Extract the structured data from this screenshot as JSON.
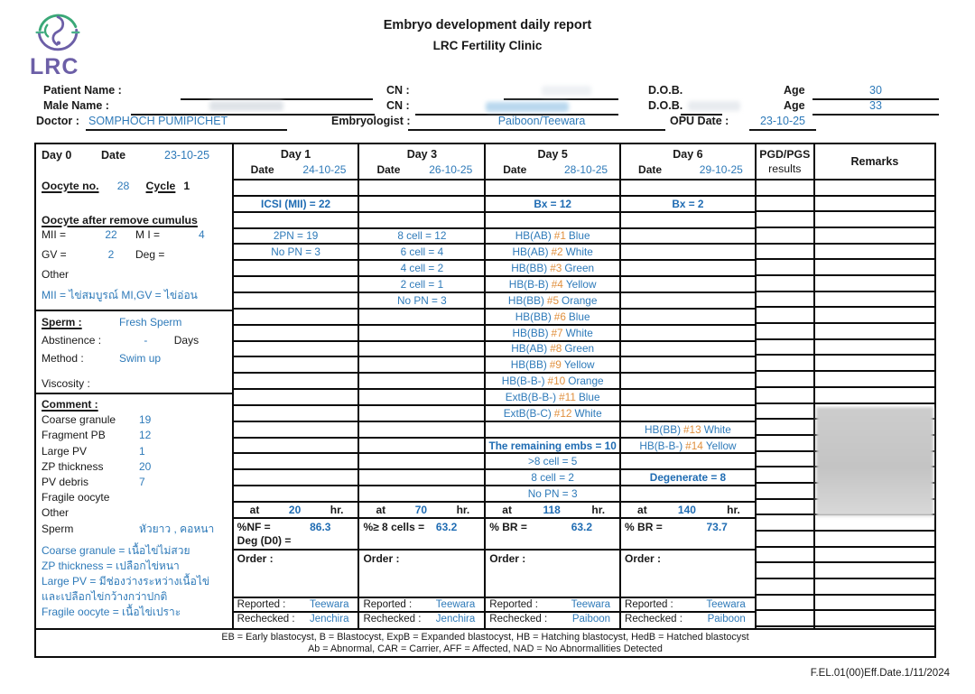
{
  "colors": {
    "accent_blue": "#2e7ab9",
    "accent_blue_bold": "#1f6cb3",
    "accent_orange": "#e0903e",
    "logo_purple": "#6c5fa7",
    "logo_green": "#3aa877"
  },
  "header": {
    "title": "Embryo development daily report",
    "subtitle": "LRC Fertility Clinic",
    "logo_text": "LRC",
    "patient_name_label": "Patient Name :",
    "male_name_label": "Male Name :",
    "doctor_label": "Doctor :",
    "doctor_value": "SOMPHOCH PUMIPICHET",
    "cn_label": "CN :",
    "dob_label": "D.O.B.",
    "age_label": "Age",
    "patient_age": "30",
    "male_age": "33",
    "embryologist_label": "Embryologist :",
    "embryologist_value": "Paiboon/Teewara",
    "opu_label": "OPU Date :",
    "opu_value": "23-10-25"
  },
  "day0": {
    "title": "Day 0",
    "date_label": "Date",
    "date": "23-10-25",
    "oocyte_no_label": "Oocyte no.",
    "oocyte_no": "28",
    "cycle_label": "Cycle",
    "cycle": "1",
    "cumulus_heading": "Oocyte after remove cumulus",
    "mii_label": "MII =",
    "mii": "22",
    "mi_label": "M I =",
    "mi": "4",
    "gv_label": "GV =",
    "gv": "2",
    "deg_label": "Deg =",
    "other_label": "Other",
    "thai_note": "MII = ไข่สมบูรณ์ MI,GV = ไข่อ่อน",
    "sperm_heading": "Sperm :",
    "sperm_type": "Fresh Sperm",
    "abstinence_label": "Abstinence :",
    "abstinence_value": "-",
    "abstinence_unit": "Days",
    "method_label": "Method :",
    "method_value": "Swim up",
    "viscosity_label": "Viscosity :",
    "comment_heading": "Comment :",
    "comments": [
      {
        "label": "Coarse granule",
        "value": "19"
      },
      {
        "label": "Fragment PB",
        "value": "12"
      },
      {
        "label": "Large PV",
        "value": "1"
      },
      {
        "label": "ZP thickness",
        "value": "20"
      },
      {
        "label": "PV debris",
        "value": "7"
      },
      {
        "label": "Fragile oocyte",
        "value": ""
      },
      {
        "label": "Other",
        "value": ""
      },
      {
        "label": "Sperm",
        "value": "หัวยาว , คอหนา"
      }
    ],
    "thai_glossary": [
      "Coarse granule  = เนื้อไข่ไม่สวย",
      "ZP thickness = เปลือกไข่หนา",
      "Large PV = มีช่องว่างระหว่างเนื้อไข่",
      "และเปลือกไข่กว้างกว่าปกติ",
      "Fragile oocyte = เนื้อไข่เปราะ"
    ]
  },
  "grid": {
    "date_label": "Date",
    "pgd_header1": "PGD/PGS",
    "pgd_header2": "results",
    "remarks_header": "Remarks",
    "days": [
      {
        "label": "Day 1",
        "date": "24-10-25",
        "rows": [
          "",
          {
            "t": "ICSI (MII) = 22",
            "b": true
          },
          "",
          {
            "t": "2PN = 19"
          },
          {
            "t": "No PN = 3"
          },
          "",
          "",
          "",
          "",
          "",
          "",
          "",
          "",
          "",
          "",
          "",
          "",
          "",
          "",
          ""
        ],
        "hr_at": "at",
        "hr_value": "20",
        "hr_unit": "hr.",
        "pct_label": "%NF =",
        "pct_value": "86.3",
        "pct_extra": "Deg (D0) =",
        "order_label": "Order :",
        "reported_label": "Reported :",
        "reported": "Teewara",
        "rechecked_label": "Rechecked :",
        "rechecked": "Jenchira"
      },
      {
        "label": "Day 3",
        "date": "26-10-25",
        "rows": [
          "",
          "",
          "",
          {
            "t": "8 cell = 12"
          },
          {
            "t": "6 cell = 4"
          },
          {
            "t": "4 cell = 2"
          },
          {
            "t": "2 cell = 1"
          },
          {
            "t": "No PN = 3"
          },
          "",
          "",
          "",
          "",
          "",
          "",
          "",
          "",
          "",
          "",
          "",
          ""
        ],
        "hr_at": "at",
        "hr_value": "70",
        "hr_unit": "hr.",
        "pct_label": "%≥ 8 cells =",
        "pct_value": "63.2",
        "pct_extra": "",
        "order_label": "Order :",
        "reported_label": "Reported :",
        "reported": "Teewara",
        "rechecked_label": "Rechecked :",
        "rechecked": "Jenchira"
      },
      {
        "label": "Day 5",
        "date": "28-10-25",
        "rows": [
          "",
          {
            "t": "Bx = 12",
            "b": true
          },
          "",
          {
            "t": "HB(AB) #1 Blue"
          },
          {
            "t": "HB(AB) #2 White"
          },
          {
            "t": "HB(BB) #3 Green"
          },
          {
            "t": "HB(B-B) #4 Yellow"
          },
          {
            "t": "HB(BB) #5 Orange"
          },
          {
            "t": "HB(BB) #6 Blue"
          },
          {
            "t": "HB(BB) #7 White"
          },
          {
            "t": "HB(AB) #8 Green"
          },
          {
            "t": "HB(BB) #9 Yellow"
          },
          {
            "t": "HB(B-B-) #10 Orange"
          },
          {
            "t": "ExtB(B-B-) #11 Blue"
          },
          {
            "t": "ExtB(B-C) #12 White"
          },
          "",
          {
            "t": "The remaining embs = 10",
            "b": true
          },
          {
            "t": ">8 cell = 5"
          },
          {
            "t": "8 cell = 2"
          },
          {
            "t": "No PN = 3"
          }
        ],
        "hr_at": "at",
        "hr_value": "118",
        "hr_unit": "hr.",
        "pct_label": "% BR =",
        "pct_value": "63.2",
        "pct_extra": "",
        "order_label": "Order :",
        "reported_label": "Reported :",
        "reported": "Teewara",
        "rechecked_label": "Rechecked :",
        "rechecked": "Paiboon"
      },
      {
        "label": "Day 6",
        "date": "29-10-25",
        "rows": [
          "",
          {
            "t": "Bx = 2",
            "b": true
          },
          "",
          "",
          "",
          "",
          "",
          "",
          "",
          "",
          "",
          "",
          "",
          "",
          "",
          {
            "t": "HB(BB) #13 White"
          },
          {
            "t": "HB(B-B-) #14 Yellow"
          },
          "",
          {
            "t": "Degenerate = 8",
            "b": true
          },
          ""
        ],
        "hr_at": "at",
        "hr_value": "140",
        "hr_unit": "hr.",
        "pct_label": "% BR =",
        "pct_value": "73.7",
        "pct_extra": "",
        "order_label": "Order :",
        "reported_label": "Reported :",
        "reported": "Teewara",
        "rechecked_label": "Rechecked :",
        "rechecked": "Paiboon"
      }
    ]
  },
  "legend": {
    "line1": "EB = Early blastocyst, B =  Blastocyst, ExpB = Expanded  blastocyst, HB = Hatching blastocyst, HedB = Hatched blastocyst",
    "line2": "Ab = Abnormal, CAR = Carrier, AFF = Affected, NAD = No Abnormallities Detected"
  },
  "footer": {
    "form_code": "F.EL.01(00)Eff.Date.1/11/2024"
  }
}
